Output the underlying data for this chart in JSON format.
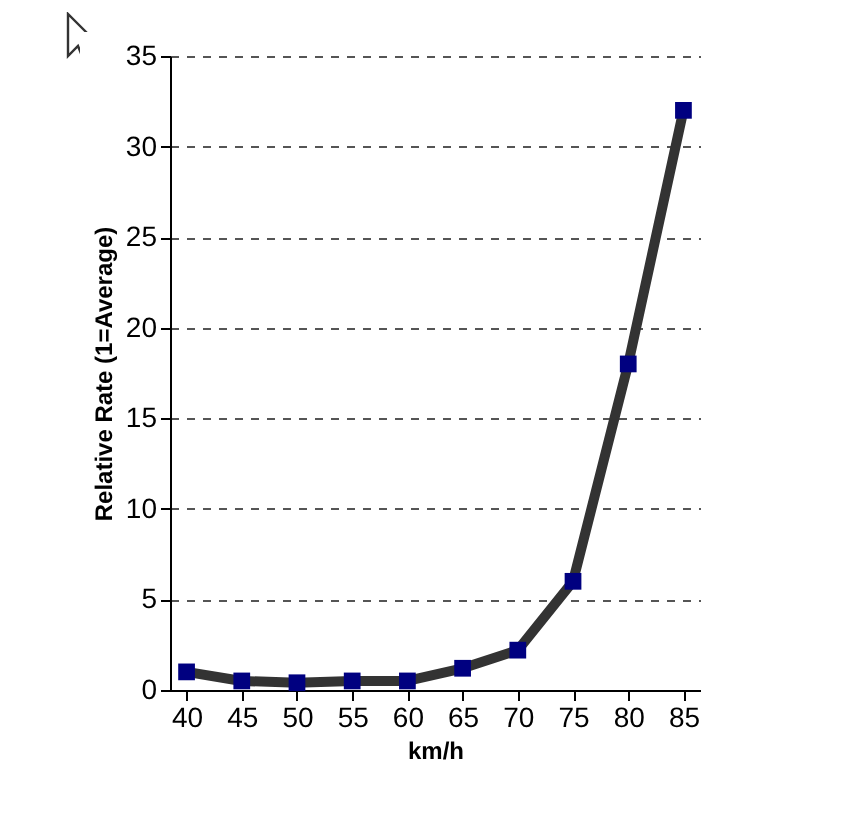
{
  "chart_data": {
    "type": "line",
    "xlabel": "km/h",
    "ylabel": "Relative Rate (1=Average)",
    "categories": [
      "40",
      "45",
      "50",
      "55",
      "60",
      "65",
      "70",
      "75",
      "80",
      "85"
    ],
    "series": [
      {
        "color": "#000080",
        "values": [
          1.0,
          0.5,
          0.4,
          0.5,
          0.5,
          1.2,
          2.2,
          6,
          18,
          32
        ]
      }
    ],
    "ylim": [
      0,
      35
    ],
    "yticks": [
      0,
      5,
      10,
      15,
      20,
      25,
      30,
      35
    ],
    "grid": "y",
    "marker": "square",
    "line_style": "solid"
  }
}
